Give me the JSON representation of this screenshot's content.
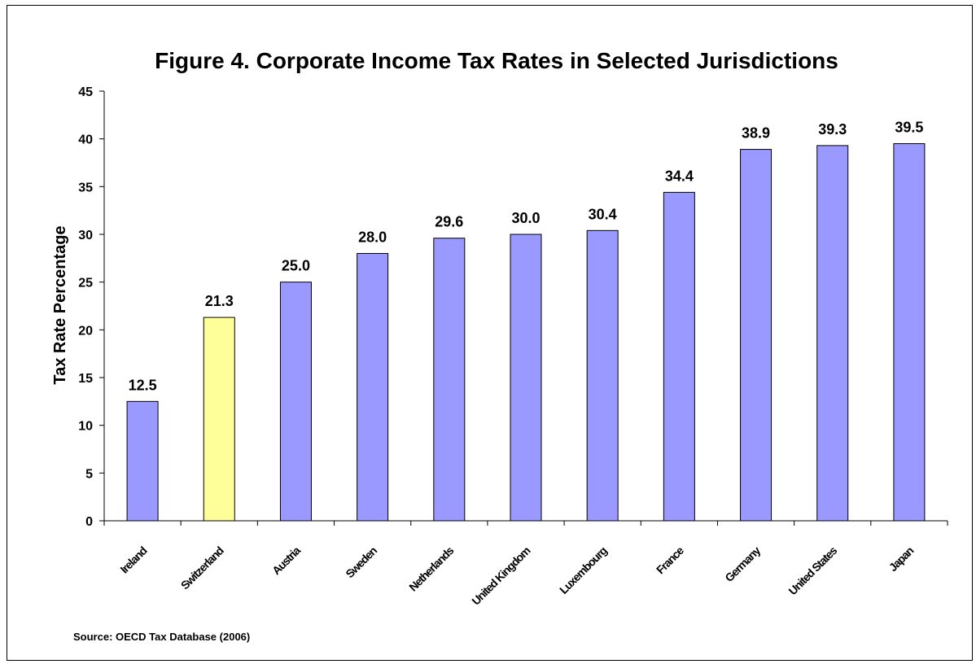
{
  "chart_data": {
    "type": "bar",
    "title": "Figure 4. Corporate Income Tax Rates in Selected Jurisdictions",
    "ylabel": "Tax Rate Percentage",
    "xlabel": "",
    "categories": [
      "Ireland",
      "Switzerland",
      "Austria",
      "Sweden",
      "Netherlands",
      "United Kingdom",
      "Luxembourg",
      "France",
      "Germany",
      "United States",
      "Japan"
    ],
    "values": [
      12.5,
      21.3,
      25.0,
      28.0,
      29.6,
      30.0,
      30.4,
      34.4,
      38.9,
      39.3,
      39.5
    ],
    "value_labels": [
      "12.5",
      "21.3",
      "25.0",
      "28.0",
      "29.6",
      "30.0",
      "30.4",
      "34.4",
      "38.9",
      "39.3",
      "39.5"
    ],
    "ylim": [
      0,
      45
    ],
    "yticks": [
      "0",
      "5",
      "10",
      "15",
      "20",
      "25",
      "30",
      "35",
      "40",
      "45"
    ],
    "grid": false,
    "bar_color": "#9999ff",
    "highlight_color": "#ffff99",
    "highlight_category": "Switzerland",
    "source_note": "Source: OECD Tax Database (2006)"
  }
}
